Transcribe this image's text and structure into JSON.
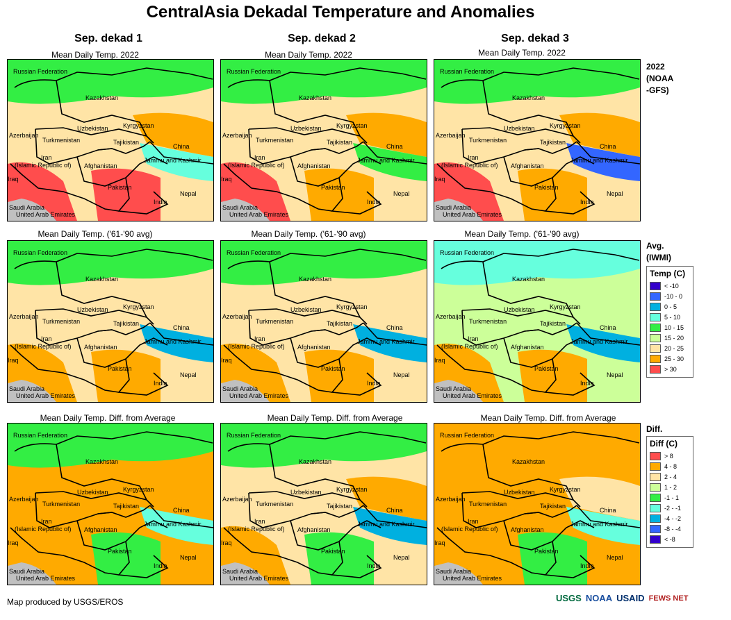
{
  "title": "CentralAsia Dekadal Temperature and Anomalies",
  "columns": [
    "Sep. dekad 1",
    "Sep. dekad 2",
    "Sep. dekad 3"
  ],
  "rows": [
    {
      "subtitle": "Mean Daily Temp. 2022",
      "side_label": [
        "2022",
        "(NOAA",
        "-GFS)"
      ]
    },
    {
      "subtitle": "Mean Daily Temp. ('61-'90 avg)",
      "side_label": [
        "Avg.",
        "(IWMI)"
      ]
    },
    {
      "subtitle": "Mean Daily Temp. Diff. from Average",
      "side_label": [
        "Diff."
      ]
    }
  ],
  "map_labels": [
    "Russian Federation",
    "Kazakhstan",
    "Uzbekistan",
    "Kyrgyzstan",
    "Azerbaijan",
    "Turkmenistan",
    "Tajikistan",
    "China",
    "Iran",
    "(Islamic Republic of)",
    "Afghanistan",
    "Jammu and Kashmir",
    "Iraq",
    "Pakistan",
    "Nepal",
    "India",
    "Saudi Arabia",
    "United Arab Emirates"
  ],
  "temp_legend": {
    "title": "Temp (C)",
    "items": [
      {
        "label": "< -10",
        "color": "#3300cc"
      },
      {
        "label": "-10 - 0",
        "color": "#3366ff"
      },
      {
        "label": "0 - 5",
        "color": "#00b0e0"
      },
      {
        "label": "5 - 10",
        "color": "#66ffdd"
      },
      {
        "label": "10 - 15",
        "color": "#33ee44"
      },
      {
        "label": "15 - 20",
        "color": "#ccff99"
      },
      {
        "label": "20 - 25",
        "color": "#ffe4a6"
      },
      {
        "label": "25 - 30",
        "color": "#ffaa00"
      },
      {
        "label": "> 30",
        "color": "#ff4d4d"
      }
    ]
  },
  "diff_legend": {
    "title": "Diff (C)",
    "items": [
      {
        "label": "> 8",
        "color": "#ff4d4d"
      },
      {
        "label": "4 - 8",
        "color": "#ffaa00"
      },
      {
        "label": "2 - 4",
        "color": "#ffe4a6"
      },
      {
        "label": "1 - 2",
        "color": "#ccff99"
      },
      {
        "label": "-1 - 1",
        "color": "#33ee44"
      },
      {
        "label": "-2 - -1",
        "color": "#66ffdd"
      },
      {
        "label": "-4 - -2",
        "color": "#00b0e0"
      },
      {
        "label": "-8 - -4",
        "color": "#3366ff"
      },
      {
        "label": "< -8",
        "color": "#3300cc"
      }
    ]
  },
  "footer": "Map produced by USGS/EROS",
  "logos": [
    "USGS",
    "NOAA",
    "USAID",
    "FEWS NET"
  ],
  "map_cells": [
    {
      "base": "#ffe4a6",
      "north": "#33ee44",
      "east": "#ffaa00",
      "tibet": "#66ffdd",
      "south": "#ff4d4d",
      "west": "#ff4d4d"
    },
    {
      "base": "#ffe4a6",
      "north": "#33ee44",
      "east": "#ffaa00",
      "tibet": "#33ee44",
      "south": "#ffaa00",
      "west": "#ff4d4d"
    },
    {
      "base": "#ffe4a6",
      "north": "#33ee44",
      "east": "#ffaa00",
      "tibet": "#3366ff",
      "south": "#ffaa00",
      "west": "#ff4d4d"
    },
    {
      "base": "#ffe4a6",
      "north": "#33ee44",
      "east": "#ffe4a6",
      "tibet": "#00b0e0",
      "south": "#ffaa00",
      "west": "#ffaa00"
    },
    {
      "base": "#ffe4a6",
      "north": "#33ee44",
      "east": "#ffe4a6",
      "tibet": "#00b0e0",
      "south": "#ffaa00",
      "west": "#ffaa00"
    },
    {
      "base": "#ccff99",
      "north": "#66ffdd",
      "east": "#ccff99",
      "tibet": "#00b0e0",
      "south": "#ffaa00",
      "west": "#ffaa00"
    },
    {
      "base": "#ffaa00",
      "north": "#33ee44",
      "east": "#ffaa00",
      "tibet": "#66ffdd",
      "south": "#33ee44",
      "west": "#ffaa00"
    },
    {
      "base": "#ffe4a6",
      "north": "#33ee44",
      "east": "#ffaa00",
      "tibet": "#00b0e0",
      "south": "#33ee44",
      "west": "#ffaa00"
    },
    {
      "base": "#ffaa00",
      "north": "#ffaa00",
      "east": "#ffe4a6",
      "tibet": "#66ffdd",
      "south": "#33ee44",
      "west": "#ffaa00"
    }
  ]
}
